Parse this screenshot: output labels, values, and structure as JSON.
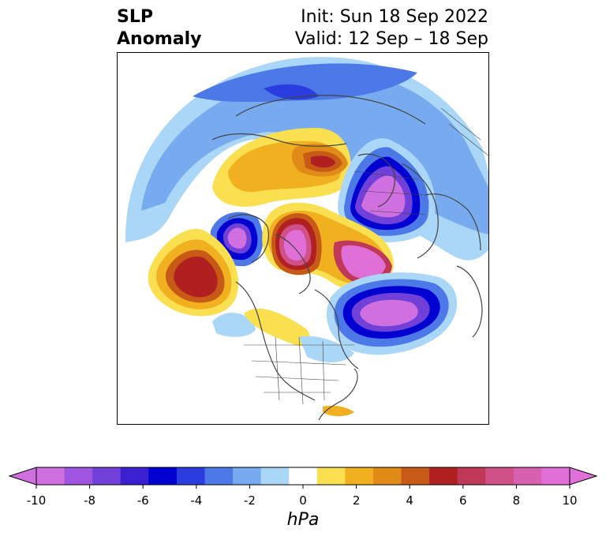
{
  "title": {
    "left_line1": "SLP",
    "left_line2": "Anomaly",
    "right_line1": "Init: Sun 18 Sep 2022",
    "right_line2": "Valid: 12 Sep – 18 Sep"
  },
  "colorbar": {
    "unit": "hPa",
    "ticks": [
      "-10",
      "-8",
      "-6",
      "-4",
      "-2",
      "0",
      "2",
      "4",
      "6",
      "8",
      "10"
    ],
    "colors": [
      "#d070e0",
      "#a055e0",
      "#7040d8",
      "#3a20d0",
      "#0000d0",
      "#2a3ee0",
      "#4c78e8",
      "#78aaf0",
      "#aad6f8",
      "#ffffff",
      "#fae050",
      "#f0b020",
      "#e08a18",
      "#c85a18",
      "#b02020",
      "#c03858",
      "#d05088",
      "#d860b0",
      "#e070d8"
    ],
    "extend_min_color": "#d070e0",
    "extend_max_color": "#e070d8"
  },
  "map": {
    "projection": "north-polar-stereographic",
    "field": "sea level pressure anomaly"
  }
}
